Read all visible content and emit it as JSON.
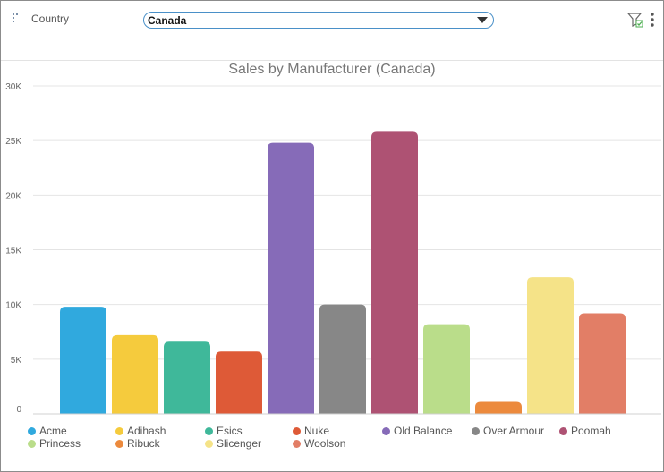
{
  "filter": {
    "label": "Country",
    "selected": "Canada"
  },
  "icons": {
    "drag": "drag-handle-icon",
    "filter": "filter-check-icon",
    "menu": "vertical-ellipsis-icon",
    "caret": "caret-down-icon"
  },
  "chart_data": {
    "type": "bar",
    "title": "Sales by Manufacturer (Canada)",
    "xlabel": "",
    "ylabel": "",
    "ylim": [
      0,
      30000
    ],
    "yticks": [
      0,
      5000,
      10000,
      15000,
      20000,
      25000,
      30000
    ],
    "ytick_labels": [
      "0",
      "5K",
      "10K",
      "15K",
      "20K",
      "25K",
      "30K"
    ],
    "grid": true,
    "legend_position": "bottom",
    "categories": [
      "Acme",
      "Adihash",
      "Esics",
      "Nuke",
      "Old Balance",
      "Over Armour",
      "Poomah",
      "Princess",
      "Ribuck",
      "Slicenger",
      "Woolson"
    ],
    "values": [
      9800,
      7200,
      6600,
      5700,
      24800,
      10000,
      25800,
      8200,
      1100,
      12500,
      9200
    ],
    "colors": [
      "#30A9DE",
      "#F5CB3D",
      "#3FB89A",
      "#DE5A37",
      "#866BB8",
      "#878787",
      "#AE5273",
      "#BADD8A",
      "#EC8A3D",
      "#F5E388",
      "#E27E66"
    ]
  }
}
